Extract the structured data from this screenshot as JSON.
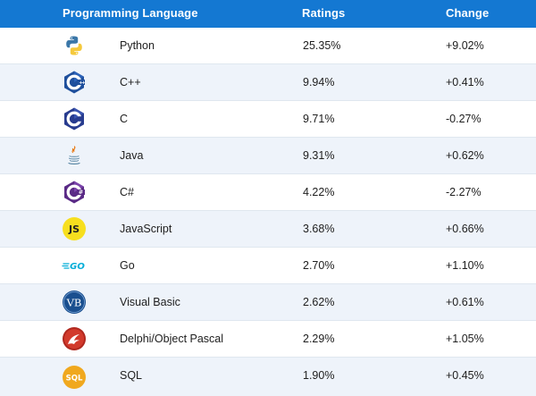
{
  "header": {
    "language": "Programming Language",
    "ratings": "Ratings",
    "change": "Change"
  },
  "rows": [
    {
      "icon": "python-logo-icon",
      "name": "Python",
      "rating": "25.35%",
      "change": "+9.02%"
    },
    {
      "icon": "cpp-logo-icon",
      "name": "C++",
      "rating": "9.94%",
      "change": "+0.41%"
    },
    {
      "icon": "c-logo-icon",
      "name": "C",
      "rating": "9.71%",
      "change": "-0.27%"
    },
    {
      "icon": "java-logo-icon",
      "name": "Java",
      "rating": "9.31%",
      "change": "+0.62%"
    },
    {
      "icon": "csharp-logo-icon",
      "name": "C#",
      "rating": "4.22%",
      "change": "-2.27%"
    },
    {
      "icon": "javascript-logo-icon",
      "name": "JavaScript",
      "rating": "3.68%",
      "change": "+0.66%"
    },
    {
      "icon": "go-logo-icon",
      "name": "Go",
      "rating": "2.70%",
      "change": "+1.10%"
    },
    {
      "icon": "visual-basic-logo-icon",
      "name": "Visual Basic",
      "rating": "2.62%",
      "change": "+0.61%"
    },
    {
      "icon": "delphi-logo-icon",
      "name": "Delphi/Object Pascal",
      "rating": "2.29%",
      "change": "+1.05%"
    },
    {
      "icon": "sql-logo-icon",
      "name": "SQL",
      "rating": "1.90%",
      "change": "+0.45%"
    }
  ],
  "logo_text": {
    "js": "JS",
    "go": "GO",
    "vb": "VB",
    "sql": "SQL"
  },
  "colors": {
    "header_bg": "#1478d2",
    "row_alt_bg": "#eef3fa",
    "header_text": "#ffffff"
  }
}
